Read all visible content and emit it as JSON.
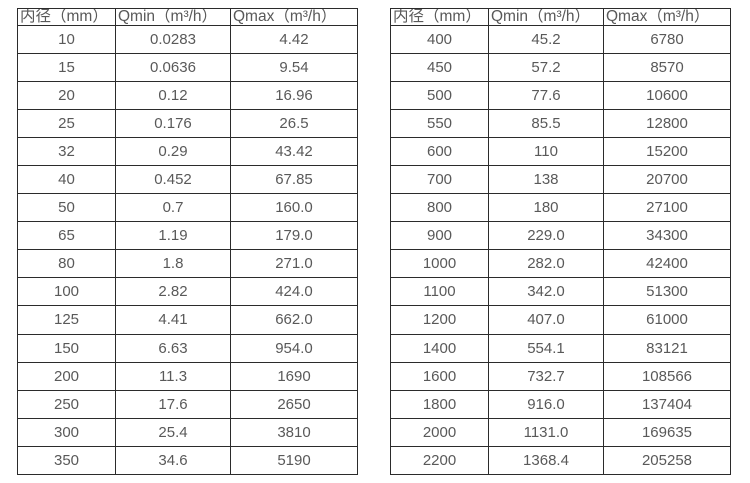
{
  "colors": {
    "border": "#2b2b2b",
    "text": "#595959",
    "background": "#ffffff"
  },
  "chart_data": [
    {
      "type": "table",
      "name": "flow-rates-small-diameters",
      "columns": [
        "内径（mm）",
        "Qmin（m³/h）",
        "Qmax（m³/h）"
      ],
      "rows": [
        [
          "10",
          "0.0283",
          "4.42"
        ],
        [
          "15",
          "0.0636",
          "9.54"
        ],
        [
          "20",
          "0.12",
          "16.96"
        ],
        [
          "25",
          "0.176",
          "26.5"
        ],
        [
          "32",
          "0.29",
          "43.42"
        ],
        [
          "40",
          "0.452",
          "67.85"
        ],
        [
          "50",
          "0.7",
          "160.0"
        ],
        [
          "65",
          "1.19",
          "179.0"
        ],
        [
          "80",
          "1.8",
          "271.0"
        ],
        [
          "100",
          "2.82",
          "424.0"
        ],
        [
          "125",
          "4.41",
          "662.0"
        ],
        [
          "150",
          "6.63",
          "954.0"
        ],
        [
          "200",
          "11.3",
          "1690"
        ],
        [
          "250",
          "17.6",
          "2650"
        ],
        [
          "300",
          "25.4",
          "3810"
        ],
        [
          "350",
          "34.6",
          "5190"
        ]
      ]
    },
    {
      "type": "table",
      "name": "flow-rates-large-diameters",
      "columns": [
        "内径（mm）",
        "Qmin（m³/h）",
        "Qmax（m³/h）"
      ],
      "rows": [
        [
          "400",
          "45.2",
          "6780"
        ],
        [
          "450",
          "57.2",
          "8570"
        ],
        [
          "500",
          "77.6",
          "10600"
        ],
        [
          "550",
          "85.5",
          "12800"
        ],
        [
          "600",
          "110",
          "15200"
        ],
        [
          "700",
          "138",
          "20700"
        ],
        [
          "800",
          "180",
          "27100"
        ],
        [
          "900",
          "229.0",
          "34300"
        ],
        [
          "1000",
          "282.0",
          "42400"
        ],
        [
          "1100",
          "342.0",
          "51300"
        ],
        [
          "1200",
          "407.0",
          "61000"
        ],
        [
          "1400",
          "554.1",
          "83121"
        ],
        [
          "1600",
          "732.7",
          "108566"
        ],
        [
          "1800",
          "916.0",
          "137404"
        ],
        [
          "2000",
          "1131.0",
          "169635"
        ],
        [
          "2200",
          "1368.4",
          "205258"
        ]
      ]
    }
  ]
}
